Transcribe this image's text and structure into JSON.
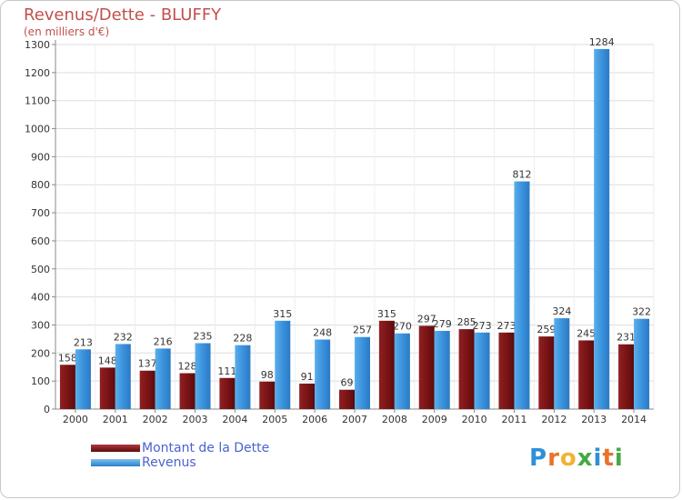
{
  "chart_data": {
    "type": "bar",
    "title": "Revenus/Dette - BLUFFY",
    "subtitle": "(en milliers d'€)",
    "categories": [
      "2000",
      "2001",
      "2002",
      "2003",
      "2004",
      "2005",
      "2006",
      "2007",
      "2008",
      "2009",
      "2010",
      "2011",
      "2012",
      "2013",
      "2014"
    ],
    "series": [
      {
        "name": "Montant de la Dette",
        "color": "#7b1416",
        "values": [
          158,
          148,
          137,
          128,
          111,
          98,
          91,
          69,
          315,
          297,
          285,
          273,
          259,
          245,
          231
        ]
      },
      {
        "name": "Revenus",
        "color": "#3b92dd",
        "values": [
          213,
          232,
          216,
          235,
          228,
          315,
          248,
          257,
          270,
          279,
          273,
          812,
          324,
          1284,
          322
        ]
      }
    ],
    "ylim": [
      0,
      1300
    ],
    "yticks": [
      0,
      100,
      200,
      300,
      400,
      500,
      600,
      700,
      800,
      900,
      1000,
      1100,
      1200,
      1300
    ],
    "grid": true,
    "legend_position": "bottom-left"
  },
  "logo": {
    "letters": [
      {
        "ch": "P",
        "color": "#2f8fd8"
      },
      {
        "ch": "r",
        "color": "#e8732a"
      },
      {
        "ch": "o",
        "color": "#f2b233"
      },
      {
        "ch": "x",
        "color": "#46a845"
      },
      {
        "ch": "i",
        "color": "#2f8fd8"
      },
      {
        "ch": "t",
        "color": "#e8732a"
      },
      {
        "ch": "i",
        "color": "#46a845"
      }
    ]
  }
}
